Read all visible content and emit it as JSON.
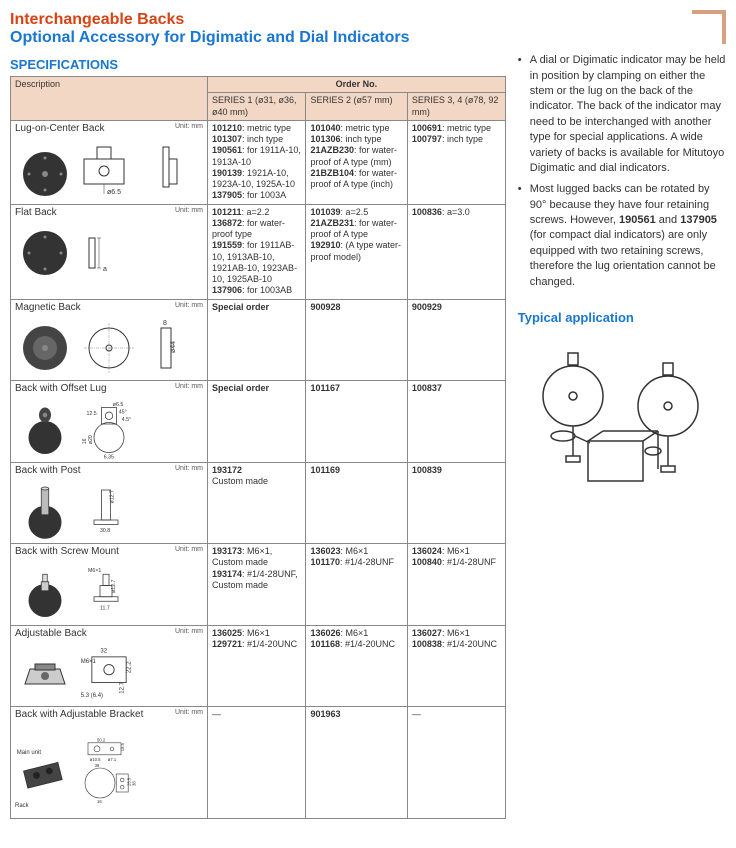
{
  "header": {
    "title": "Interchangeable Backs",
    "subtitle": "Optional Accessory for Digimatic and Dial Indicators",
    "spec_label": "SPECIFICATIONS"
  },
  "table": {
    "desc_header": "Description",
    "order_header": "Order No.",
    "series1_header": "SERIES 1 (ø31, ø36, ø40 mm)",
    "series2_header": "SERIES 2 (ø57 mm)",
    "series3_header": "SERIES 3, 4 (ø78, 92 mm)",
    "rows": [
      {
        "desc": "Lug-on-Center Back",
        "unit": "Unit: mm",
        "dims": {
          "a": "ø6.5"
        },
        "s1": "101210: metric type\n101307: inch type\n190561: for 1911A-10, 1913A-10\n190139: 1921A-10, 1923A-10, 1925A-10\n137905: for 1003A",
        "s2": "101040: metric type\n101306: inch type\n21AZB230: for water-proof of A type (mm)\n21BZB104: for water-proof of A type (inch)",
        "s3": "100691: metric type\n100797: inch type"
      },
      {
        "desc": "Flat Back",
        "unit": "Unit: mm",
        "dims": {
          "a": "a"
        },
        "s1": "101211: a=2.2\n136872: for water-proof type\n191559: for 1911AB-10, 1913AB-10, 1921AB-10, 1923AB-10, 1925AB-10\n137906: for 1003AB",
        "s2": "101039: a=2.5\n21AZB231: for water-proof of A type\n192910: (A type water-proof model)",
        "s3": "100836: a=3.0"
      },
      {
        "desc": "Magnetic Back",
        "unit": "Unit: mm",
        "dims": {
          "a": "8",
          "b": "ø44"
        },
        "s1": "Special order",
        "s2": "900928",
        "s3": "900929"
      },
      {
        "desc": "Back with Offset Lug",
        "unit": "Unit: mm",
        "dims": {
          "a": "ø6.5",
          "b": "12.5",
          "c": "45°",
          "d": "4.5°",
          "e": "16",
          "f": "ø20",
          "g": "6.35"
        },
        "s1": "Special order",
        "s2": "101167",
        "s3": "100837"
      },
      {
        "desc": "Back with Post",
        "unit": "Unit: mm",
        "dims": {
          "a": "ø12.7",
          "b": "30.8"
        },
        "s1": "193172\n  Custom made",
        "s2": "101169",
        "s3": "100839"
      },
      {
        "desc": "Back with Screw Mount",
        "unit": "Unit: mm",
        "dims": {
          "a": "M6×1",
          "b": "ø12.7",
          "c": "11.7"
        },
        "s1": "193173: M6×1, Custom made\n193174: #1/4-28UNF, Custom made",
        "s2": "136023: M6×1\n101170: #1/4-28UNF",
        "s3": "136024: M6×1\n100840: #1/4-28UNF"
      },
      {
        "desc": "Adjustable Back",
        "unit": "Unit: mm",
        "dims": {
          "a": "32",
          "b": "M6×1",
          "c": "22.2",
          "d": "12.7",
          "e": "5.3 (6.4)"
        },
        "s1": "136025: M6×1\n129721: #1/4-20UNC",
        "s2": "136026: M6×1\n101168: #1/4-20UNC",
        "s3": "136027: M6×1\n100838: #1/4-20UNC"
      },
      {
        "desc": "Back with Adjustable Bracket",
        "unit": "Unit: mm",
        "dims": {
          "a": "50.2",
          "b": "18.5",
          "c": "ø10.5",
          "d": "ø7.1",
          "e": "38",
          "f": "25.5",
          "g": "38",
          "h": "16"
        },
        "labels": {
          "main": "Main unit",
          "rack": "Rack"
        },
        "s1": "—",
        "s2": "901963",
        "s3": "—"
      }
    ]
  },
  "notes": {
    "n1": "A dial or Digimatic indicator may be held in position by clamping on either the stem or the lug on the back of the indicator. The back of the indicator may need to be interchanged with another type for special applications. A wide variety of backs is available for Mitutoyo Digimatic and dial indicators.",
    "n2a": "Most lugged backs can be rotated by 90° because they have four retaining screws. However, ",
    "n2b": "190561",
    "n2c": " and ",
    "n2d": "137905",
    "n2e": " (for compact dial indicators) are only equipped with two retaining screws, therefore the lug orientation cannot be changed.",
    "typical_label": "Typical application"
  }
}
